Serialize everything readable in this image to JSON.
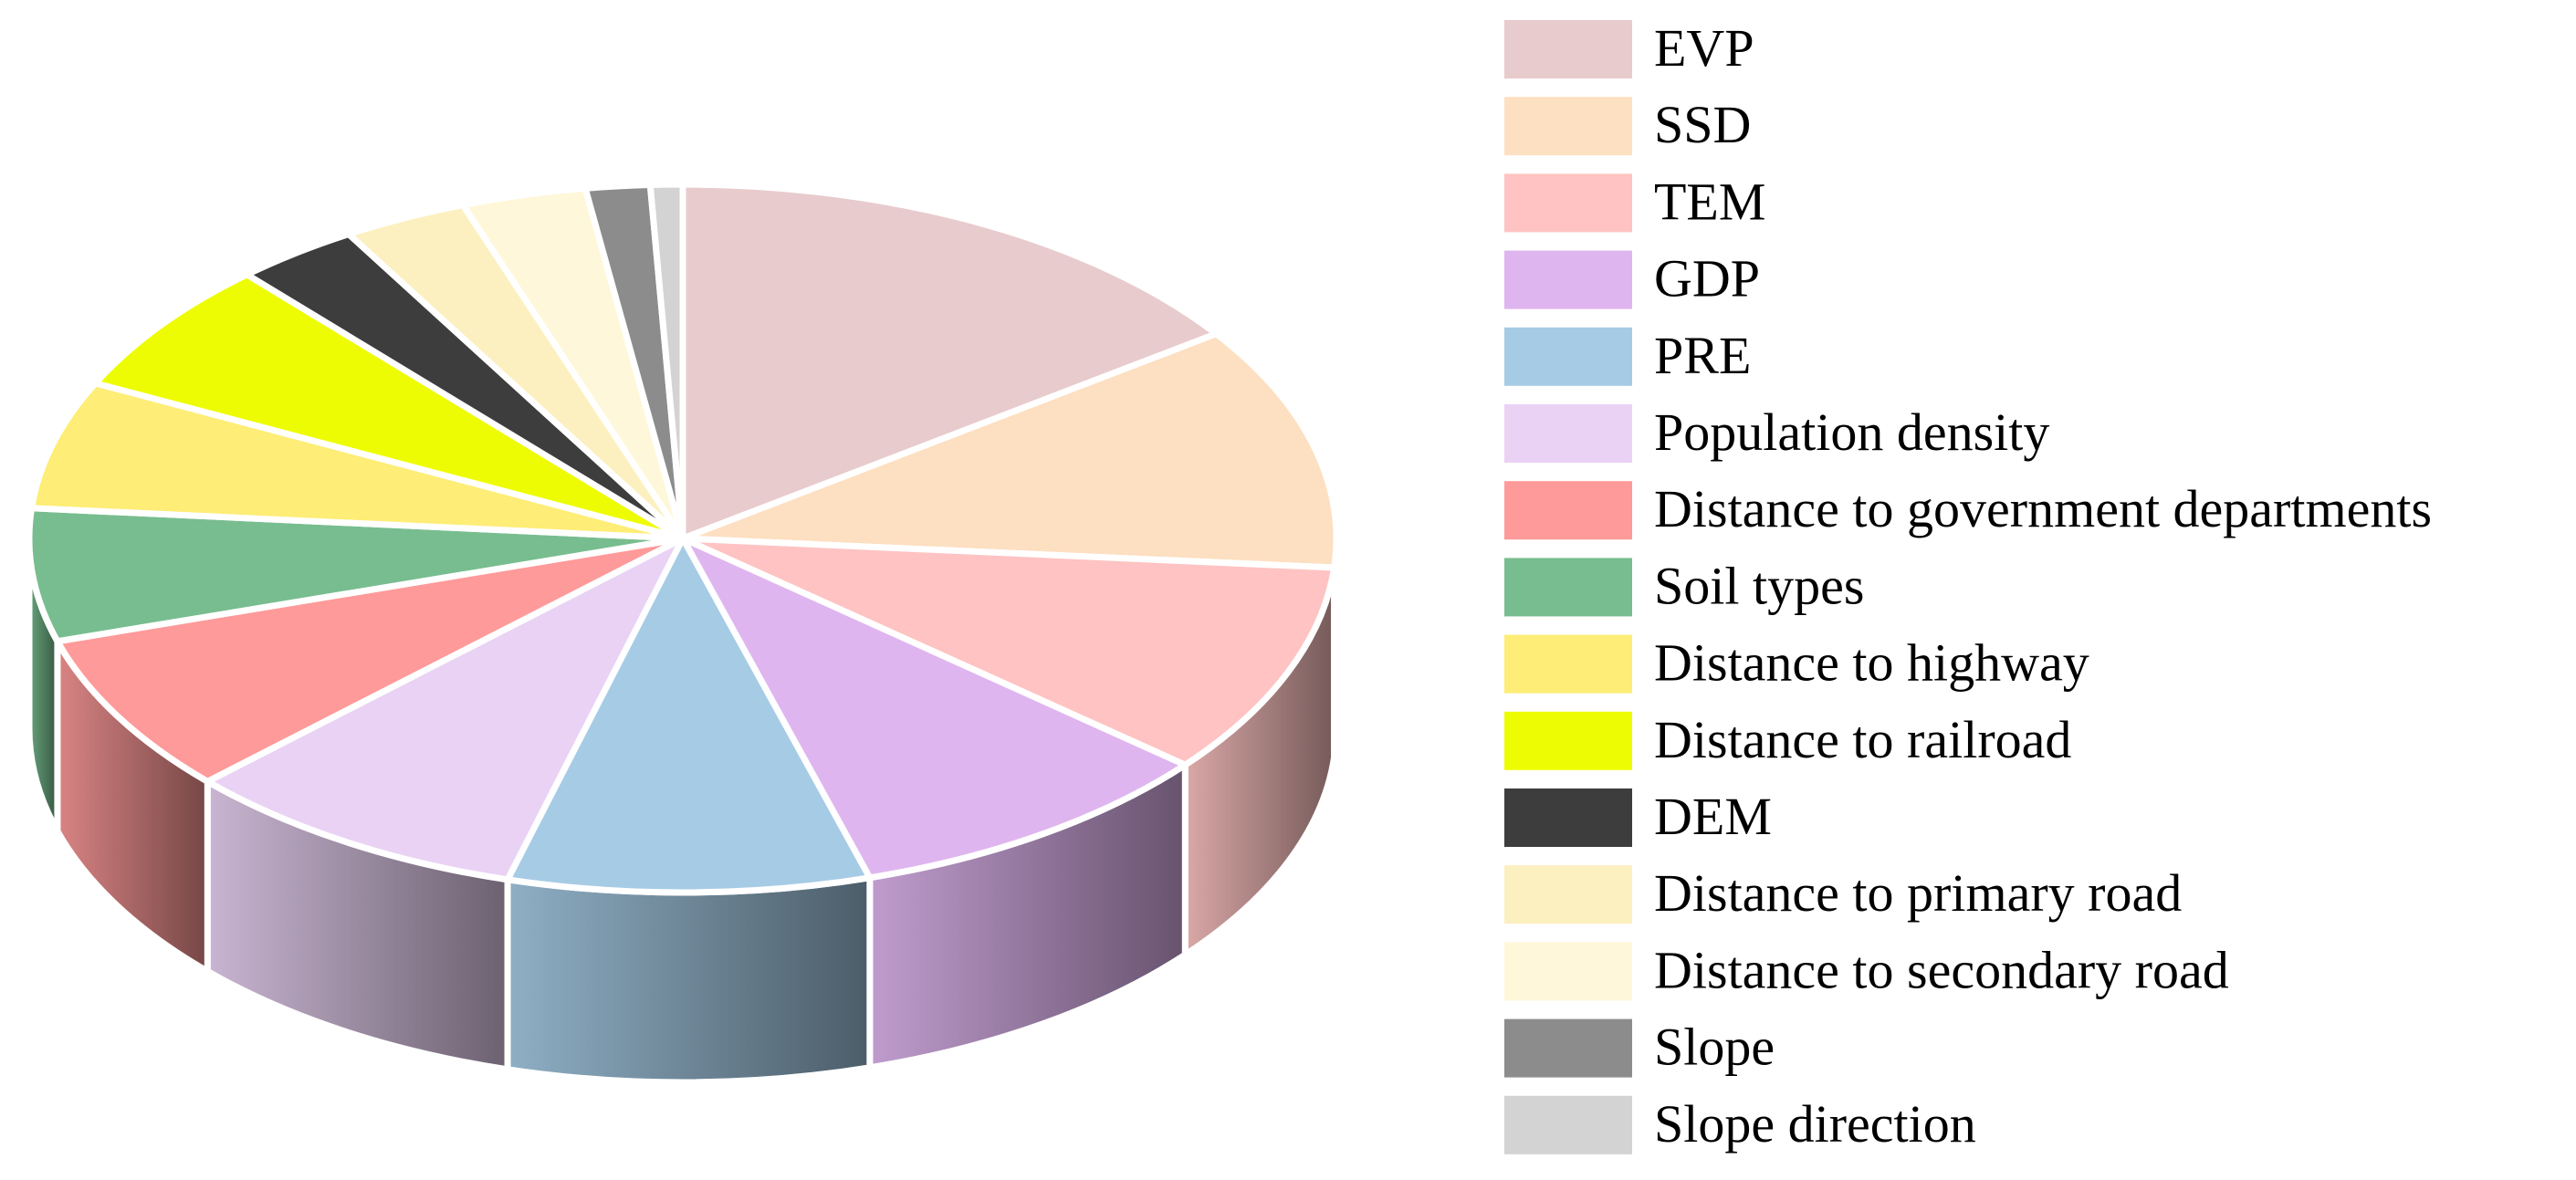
{
  "chart_data": {
    "type": "pie",
    "style": "3d",
    "legend_position": "right",
    "slices": [
      {
        "label": "EVP",
        "value": 15.3,
        "color": "#E8CBCD"
      },
      {
        "label": "SSD",
        "value": 11.2,
        "color": "#FDDFC1"
      },
      {
        "label": "TEM",
        "value": 9.8,
        "color": "#FEC3C2"
      },
      {
        "label": "GDP",
        "value": 9.4,
        "color": "#DFB5EF"
      },
      {
        "label": "PRE",
        "value": 9.0,
        "color": "#A6CBE5"
      },
      {
        "label": "Population density",
        "value": 8.7,
        "color": "#EAD2F4"
      },
      {
        "label": "Distance to government departments",
        "value": 7.4,
        "color": "#FE9A99"
      },
      {
        "label": "Soil types",
        "value": 6.1,
        "color": "#78BD8F"
      },
      {
        "label": "Distance to highway",
        "value": 5.9,
        "color": "#FEED76"
      },
      {
        "label": "Distance to railroad",
        "value": 6.2,
        "color": "#EEFC03"
      },
      {
        "label": "DEM",
        "value": 3.1,
        "color": "#3D3D3D"
      },
      {
        "label": "Distance to primary road",
        "value": 3.1,
        "color": "#FDF0C0"
      },
      {
        "label": "Distance to secondary road",
        "value": 3.1,
        "color": "#FEF7D9"
      },
      {
        "label": "Slope",
        "value": 1.6,
        "color": "#8C8C8C"
      },
      {
        "label": "Slope direction",
        "value": 0.8,
        "color": "#D3D3D3"
      }
    ]
  }
}
